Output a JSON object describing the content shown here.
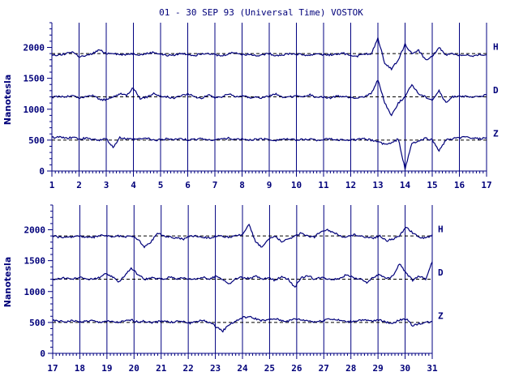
{
  "chart_data": {
    "type": "line",
    "title": "01 - 30 SEP 93 (Universal Time) VOSTOK",
    "ylabel": "Nanotesla",
    "y_ticks": [
      "0",
      "500",
      "1000",
      "1500",
      "2000"
    ],
    "ylim": [
      0,
      2400
    ],
    "colors": {
      "line": "#00007a",
      "axis": "#000080",
      "text": "#00007a"
    },
    "grid": "vertical-day-lines",
    "legend": "right-of-traces",
    "panels": [
      {
        "id": "top",
        "x_ticks": [
          "1",
          "2",
          "3",
          "4",
          "5",
          "6",
          "7",
          "8",
          "9",
          "10",
          "11",
          "12",
          "13",
          "14",
          "15",
          "16",
          "17"
        ],
        "xlim": [
          1,
          17
        ],
        "series": [
          {
            "name": "H",
            "baseline": 1900,
            "values": [
              1880,
              1870,
              1900,
              1930,
              1850,
              1860,
              1900,
              1960,
              1900,
              1910,
              1880,
              1890,
              1900,
              1880,
              1900,
              1920,
              1890,
              1870,
              1880,
              1900,
              1890,
              1870,
              1900,
              1910,
              1880,
              1860,
              1900,
              1920,
              1880,
              1890,
              1870,
              1880,
              1900,
              1870,
              1880,
              1900,
              1890,
              1880,
              1870,
              1900,
              1880,
              1880,
              1890,
              1900,
              1870,
              1860,
              1900,
              1880,
              2150,
              1750,
              1650,
              1800,
              2050,
              1900,
              1950,
              1800,
              1850,
              2000,
              1880,
              1900,
              1870,
              1880,
              1850,
              1880,
              1880
            ]
          },
          {
            "name": "D",
            "baseline": 1200,
            "values": [
              1190,
              1210,
              1200,
              1220,
              1180,
              1200,
              1230,
              1160,
              1150,
              1200,
              1250,
              1230,
              1350,
              1160,
              1200,
              1260,
              1210,
              1200,
              1180,
              1220,
              1250,
              1200,
              1180,
              1230,
              1190,
              1200,
              1250,
              1200,
              1220,
              1190,
              1200,
              1180,
              1220,
              1250,
              1180,
              1200,
              1210,
              1200,
              1230,
              1190,
              1200,
              1180,
              1210,
              1200,
              1190,
              1180,
              1210,
              1250,
              1480,
              1100,
              900,
              1100,
              1200,
              1400,
              1250,
              1200,
              1150,
              1300,
              1100,
              1200,
              1220,
              1200,
              1190,
              1210,
              1230
            ]
          },
          {
            "name": "Z",
            "baseline": 500,
            "values": [
              540,
              550,
              530,
              540,
              520,
              530,
              510,
              500,
              520,
              380,
              540,
              520,
              510,
              520,
              530,
              500,
              510,
              520,
              510,
              520,
              500,
              510,
              530,
              500,
              510,
              520,
              530,
              510,
              520,
              500,
              510,
              520,
              510,
              500,
              520,
              510,
              500,
              510,
              520,
              500,
              510,
              520,
              500,
              510,
              500,
              510,
              520,
              500,
              480,
              430,
              450,
              520,
              30,
              450,
              480,
              530,
              500,
              330,
              500,
              520,
              540,
              550,
              530,
              520,
              540
            ]
          }
        ]
      },
      {
        "id": "bottom",
        "x_ticks": [
          "17",
          "18",
          "19",
          "20",
          "21",
          "22",
          "23",
          "24",
          "25",
          "26",
          "27",
          "28",
          "29",
          "30",
          "31"
        ],
        "xlim": [
          17,
          31
        ],
        "series": [
          {
            "name": "H",
            "baseline": 1900,
            "values": [
              1900,
              1880,
              1870,
              1890,
              1900,
              1880,
              1870,
              1900,
              1910,
              1880,
              1900,
              1880,
              1900,
              1850,
              1720,
              1800,
              1950,
              1900,
              1880,
              1870,
              1850,
              1900,
              1900,
              1880,
              1870,
              1900,
              1890,
              1880,
              1900,
              1920,
              2100,
              1800,
              1720,
              1850,
              1900,
              1800,
              1850,
              1900,
              1950,
              1900,
              1880,
              1980,
              2000,
              1950,
              1900,
              1880,
              1920,
              1900,
              1880,
              1870,
              1900,
              1820,
              1850,
              1900,
              2050,
              1950,
              1880,
              1860,
              1920
            ]
          },
          {
            "name": "D",
            "baseline": 1200,
            "values": [
              1200,
              1210,
              1220,
              1200,
              1230,
              1210,
              1200,
              1220,
              1280,
              1250,
              1150,
              1260,
              1380,
              1280,
              1200,
              1220,
              1210,
              1200,
              1240,
              1210,
              1220,
              1200,
              1210,
              1230,
              1200,
              1250,
              1200,
              1120,
              1210,
              1230,
              1210,
              1250,
              1200,
              1220,
              1180,
              1250,
              1200,
              1070,
              1220,
              1260,
              1200,
              1230,
              1210,
              1200,
              1220,
              1280,
              1220,
              1200,
              1150,
              1230,
              1280,
              1200,
              1250,
              1450,
              1300,
              1180,
              1250,
              1200,
              1480
            ]
          },
          {
            "name": "Z",
            "baseline": 500,
            "values": [
              530,
              520,
              510,
              530,
              510,
              520,
              530,
              500,
              520,
              510,
              500,
              520,
              540,
              510,
              520,
              500,
              510,
              530,
              500,
              520,
              510,
              490,
              520,
              530,
              500,
              430,
              360,
              470,
              520,
              580,
              590,
              560,
              530,
              540,
              560,
              530,
              520,
              560,
              540,
              530,
              510,
              520,
              560,
              550,
              530,
              510,
              520,
              540,
              530,
              520,
              550,
              500,
              490,
              540,
              560,
              450,
              480,
              500,
              510
            ]
          }
        ]
      }
    ]
  }
}
